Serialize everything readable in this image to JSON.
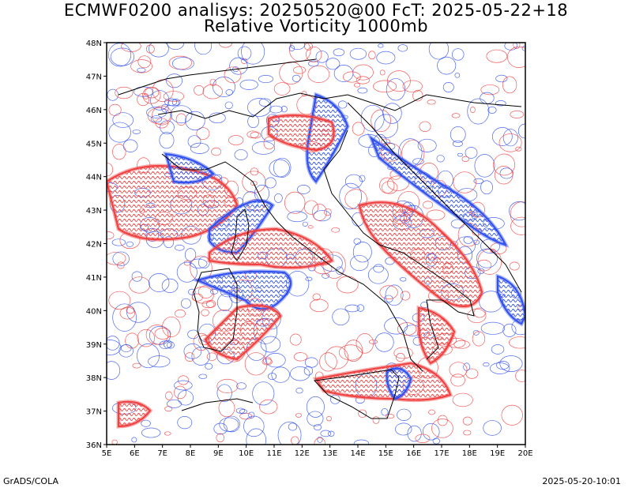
{
  "title": {
    "line1": "ECMWF0200 analisys: 20250520@00 FcT: 2025-05-22+18",
    "line2": "Relative Vorticity 1000mb"
  },
  "footer": {
    "left": "GrADS/COLA",
    "right": "2025-05-20-10:01"
  },
  "map": {
    "lon_range": [
      5,
      20
    ],
    "lat_range": [
      36,
      48
    ],
    "x_ticks": [
      "5E",
      "6E",
      "7E",
      "8E",
      "9E",
      "10E",
      "11E",
      "12E",
      "13E",
      "14E",
      "15E",
      "16E",
      "17E",
      "18E",
      "19E",
      "20E"
    ],
    "y_ticks": [
      "36N",
      "37N",
      "38N",
      "39N",
      "40N",
      "41N",
      "42N",
      "43N",
      "44N",
      "45N",
      "46N",
      "47N",
      "48N"
    ],
    "colors": {
      "positive": "#f04040",
      "negative": "#3050f0",
      "coast": "#000000",
      "background": "#ffffff"
    }
  }
}
